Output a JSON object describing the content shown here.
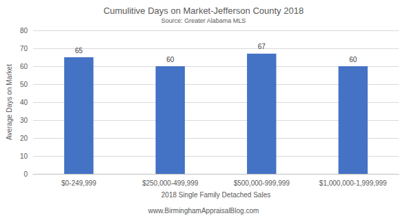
{
  "chart_data": {
    "type": "bar",
    "title": "Cumulitive Days on Market-Jefferson County 2018",
    "subtitle": "Source: Greater Alabama MLS",
    "xlabel": "2018 Single Family Detached Sales",
    "ylabel": "Average Days on Market",
    "annotation": "www.BirminghamAppraisalBlog.com",
    "categories": [
      "$0-249,999",
      "$250,000-499,999",
      "$500,000-999,999",
      "$1,000,000-1,999,999"
    ],
    "values": [
      65,
      60,
      67,
      60
    ],
    "color": "#4472c4",
    "ylim": [
      0,
      80
    ],
    "yticks": [
      0,
      10,
      20,
      30,
      40,
      50,
      60,
      70,
      80
    ],
    "grid": true,
    "data_labels": true
  }
}
